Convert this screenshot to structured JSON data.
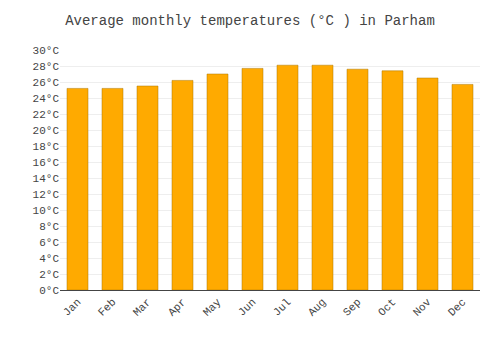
{
  "chart_data": {
    "type": "bar",
    "title": "Average monthly temperatures (°C ) in Parham",
    "categories": [
      "Jan",
      "Feb",
      "Mar",
      "Apr",
      "May",
      "Jun",
      "Jul",
      "Aug",
      "Sep",
      "Oct",
      "Nov",
      "Dec"
    ],
    "values": [
      25.2,
      25.2,
      25.5,
      26.2,
      27.0,
      27.7,
      28.1,
      28.1,
      27.6,
      27.4,
      26.5,
      25.7
    ],
    "color": "#FFAA00",
    "ylim": [
      0,
      30
    ],
    "yticks": [
      {
        "value": 0,
        "label": "0°C"
      },
      {
        "value": 2,
        "label": "2°C"
      },
      {
        "value": 4,
        "label": "4°C"
      },
      {
        "value": 6,
        "label": "6°C"
      },
      {
        "value": 8,
        "label": "8°C"
      },
      {
        "value": 10,
        "label": "10°C"
      },
      {
        "value": 12,
        "label": "12°C"
      },
      {
        "value": 14,
        "label": "14°C"
      },
      {
        "value": 16,
        "label": "16°C"
      },
      {
        "value": 18,
        "label": "18°C"
      },
      {
        "value": 20,
        "label": "20°C"
      },
      {
        "value": 22,
        "label": "22°C"
      },
      {
        "value": 24,
        "label": "24°C"
      },
      {
        "value": 26,
        "label": "26°C"
      },
      {
        "value": 28,
        "label": "28°C"
      },
      {
        "value": 30,
        "label": "30°C"
      }
    ],
    "grid": true
  }
}
